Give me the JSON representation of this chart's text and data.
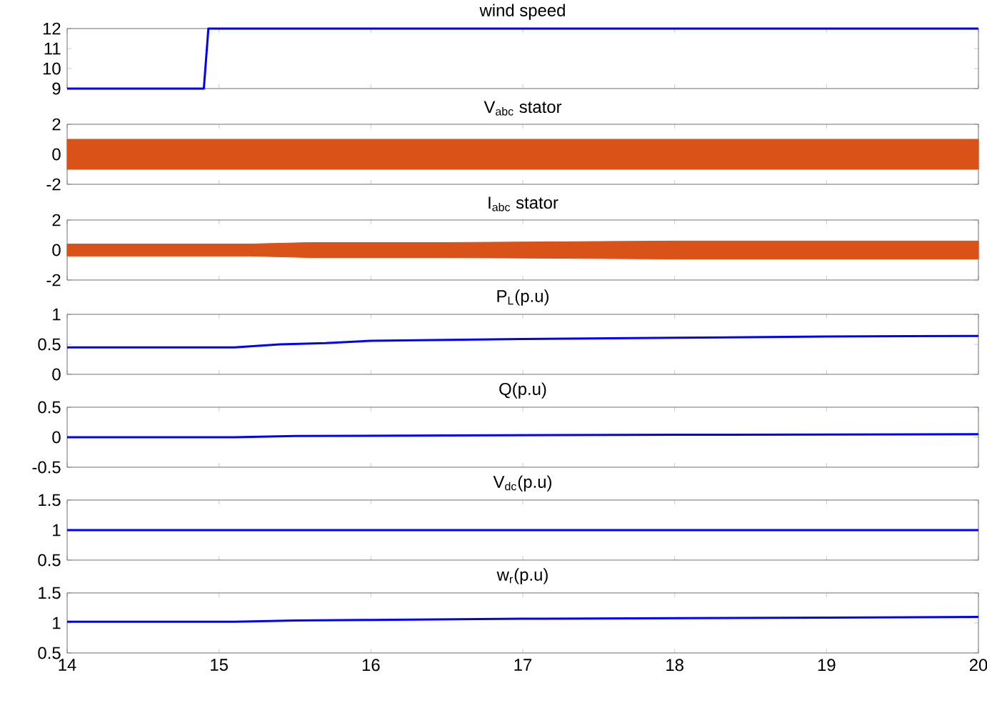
{
  "chart_data": [
    {
      "type": "line",
      "title": "wind speed",
      "xlim": [
        14,
        20
      ],
      "xticks": [
        14,
        15,
        16,
        17,
        18,
        19,
        20
      ],
      "ylim": [
        9,
        12
      ],
      "yticks": [
        9,
        10,
        11,
        12
      ],
      "tick_labels": "y",
      "series": [
        {
          "color": "#0000ff",
          "x": [
            14,
            14.9,
            14.93,
            20
          ],
          "values": [
            9,
            9,
            12,
            12
          ]
        }
      ]
    },
    {
      "type": "line",
      "title": "V$_{abc}$ stator",
      "xlim": [
        14,
        20
      ],
      "xticks": [
        14,
        15,
        16,
        17,
        18,
        19,
        20
      ],
      "ylim": [
        -2,
        2
      ],
      "yticks": [
        -2,
        0,
        2
      ],
      "tick_labels": "y",
      "series": [
        {
          "type": "area",
          "color": "#d95319",
          "x": [
            14,
            20
          ],
          "values": [
            1,
            1
          ]
        },
        {
          "type": "area",
          "color": "#d95319",
          "x": [
            14,
            20
          ],
          "values": [
            -1,
            -1
          ]
        }
      ]
    },
    {
      "type": "line",
      "title": "I$_{abc}$ stator",
      "xlim": [
        14,
        20
      ],
      "xticks": [
        14,
        15,
        16,
        17,
        18,
        19,
        20
      ],
      "ylim": [
        -2,
        2
      ],
      "yticks": [
        -2,
        0,
        2
      ],
      "tick_labels": "y",
      "series": [
        {
          "type": "area",
          "color": "#d95319",
          "x": [
            14,
            15.2,
            15.6,
            16.5,
            18,
            20
          ],
          "values": [
            0.4,
            0.4,
            0.5,
            0.5,
            0.6,
            0.6
          ]
        },
        {
          "type": "area",
          "color": "#d95319",
          "x": [
            14,
            15.2,
            15.6,
            16.5,
            18,
            20
          ],
          "values": [
            -0.4,
            -0.4,
            -0.5,
            -0.5,
            -0.6,
            -0.6
          ]
        }
      ]
    },
    {
      "type": "line",
      "title": "P$_{L}$(p.u)",
      "xlim": [
        14,
        20
      ],
      "xticks": [
        14,
        15,
        16,
        17,
        18,
        19,
        20
      ],
      "ylim": [
        0,
        1
      ],
      "yticks": [
        0,
        0.5,
        1
      ],
      "tick_labels": "y",
      "series": [
        {
          "color": "#0000ff",
          "x": [
            14,
            15.1,
            15.4,
            15.7,
            16,
            17,
            18,
            19,
            20
          ],
          "values": [
            0.45,
            0.45,
            0.5,
            0.52,
            0.56,
            0.59,
            0.61,
            0.63,
            0.64
          ]
        }
      ]
    },
    {
      "type": "line",
      "title": "Q(p.u)",
      "xlim": [
        14,
        20
      ],
      "xticks": [
        14,
        15,
        16,
        17,
        18,
        19,
        20
      ],
      "ylim": [
        -0.5,
        0.5
      ],
      "yticks": [
        -0.5,
        0,
        0.5
      ],
      "tick_labels": "y",
      "series": [
        {
          "color": "#0000ff",
          "x": [
            14,
            15.1,
            15.5,
            16.5,
            18,
            20
          ],
          "values": [
            0,
            0,
            0.02,
            0.03,
            0.04,
            0.05
          ]
        }
      ]
    },
    {
      "type": "line",
      "title": "V$_{dc}$(p.u)",
      "xlim": [
        14,
        20
      ],
      "xticks": [
        14,
        15,
        16,
        17,
        18,
        19,
        20
      ],
      "ylim": [
        0.5,
        1.5
      ],
      "yticks": [
        0.5,
        1,
        1.5
      ],
      "tick_labels": "y",
      "series": [
        {
          "color": "#0000ff",
          "x": [
            14,
            20
          ],
          "values": [
            1,
            1
          ]
        }
      ]
    },
    {
      "type": "line",
      "title": "w$_{r}$(p.u)",
      "xlim": [
        14,
        20
      ],
      "xticks": [
        14,
        15,
        16,
        17,
        18,
        19,
        20
      ],
      "ylim": [
        0.5,
        1.5
      ],
      "yticks": [
        0.5,
        1,
        1.5
      ],
      "series": [
        {
          "color": "#0000ff",
          "x": [
            14,
            15.1,
            15.5,
            16,
            17,
            18,
            19,
            20
          ],
          "values": [
            1.02,
            1.02,
            1.04,
            1.05,
            1.07,
            1.08,
            1.09,
            1.1
          ]
        }
      ]
    }
  ]
}
